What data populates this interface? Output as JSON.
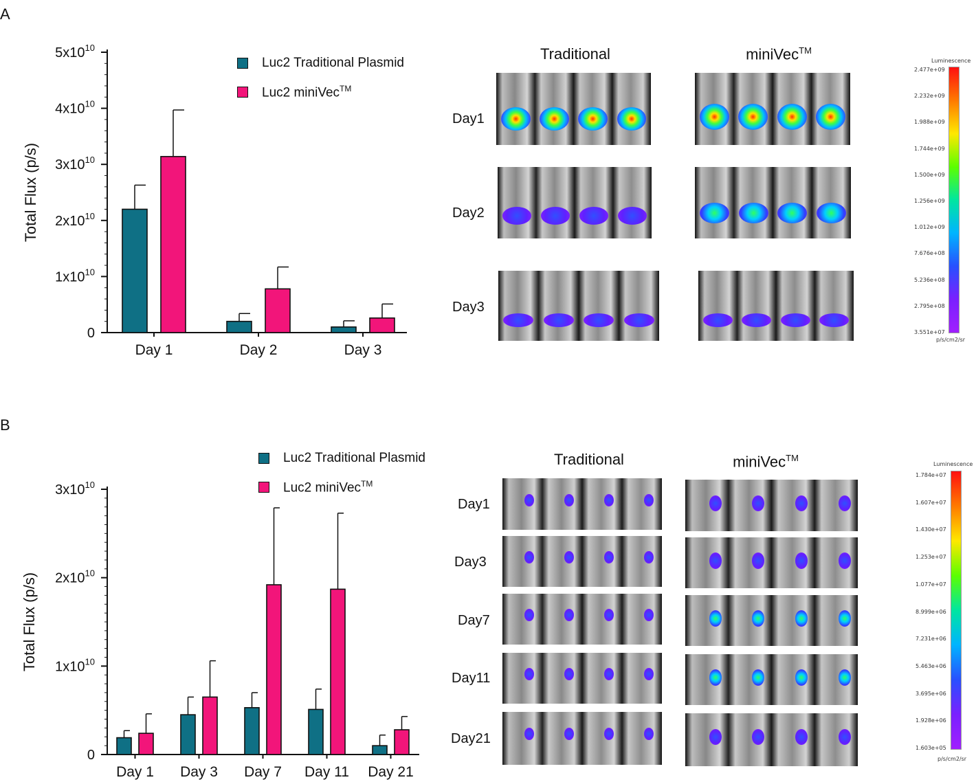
{
  "panels": {
    "a": "A",
    "b": "B"
  },
  "legend": {
    "traditional": "Luc2 Traditional Plasmid",
    "minivec": "Luc2 miniVec",
    "tm": "TM"
  },
  "colors": {
    "traditional": "#0f7085",
    "minivec": "#f2157a"
  },
  "chart_data": [
    {
      "type": "bar",
      "panel": "A",
      "categories": [
        "Day 1",
        "Day 2",
        "Day 3"
      ],
      "series": [
        {
          "name": "Luc2 Traditional Plasmid",
          "values": [
            22000000000.0,
            2000000000.0,
            1000000000.0
          ],
          "errors": [
            4300000000.0,
            1400000000.0,
            1100000000.0
          ]
        },
        {
          "name": "Luc2 miniVecTM",
          "values": [
            31400000000.0,
            7800000000.0,
            2600000000.0
          ],
          "errors": [
            8300000000.0,
            3900000000.0,
            2500000000.0
          ]
        }
      ],
      "ylabel": "Total Flux (p/s)",
      "ylim": [
        0,
        50000000000.0
      ],
      "yticks": [
        {
          "base": "0",
          "exp": "",
          "value": 0
        },
        {
          "base": "1x10",
          "exp": "10",
          "value": 10000000000.0
        },
        {
          "base": "2x10",
          "exp": "10",
          "value": 20000000000.0
        },
        {
          "base": "3x10",
          "exp": "10",
          "value": 30000000000.0
        },
        {
          "base": "4x10",
          "exp": "10",
          "value": 40000000000.0
        },
        {
          "base": "5x10",
          "exp": "10",
          "value": 50000000000.0
        }
      ]
    },
    {
      "type": "bar",
      "panel": "B",
      "categories": [
        "Day 1",
        "Day 3",
        "Day 7",
        "Day 11",
        "Day 21"
      ],
      "series": [
        {
          "name": "Luc2 Traditional Plasmid",
          "values": [
            1900000000.0,
            4500000000.0,
            5300000000.0,
            5100000000.0,
            1000000000.0
          ],
          "errors": [
            800000000.0,
            2000000000.0,
            1700000000.0,
            2300000000.0,
            1200000000.0
          ]
        },
        {
          "name": "Luc2 miniVecTM",
          "values": [
            2400000000.0,
            6500000000.0,
            19200000000.0,
            18700000000.0,
            2800000000.0
          ],
          "errors": [
            2200000000.0,
            4100000000.0,
            8700000000.0,
            8600000000.0,
            1500000000.0
          ]
        }
      ],
      "ylabel": "Total Flux (p/s)",
      "ylim": [
        0,
        30000000000.0
      ],
      "yticks": [
        {
          "base": "0",
          "exp": "",
          "value": 0
        },
        {
          "base": "1x10",
          "exp": "10",
          "value": 10000000000.0
        },
        {
          "base": "2x10",
          "exp": "10",
          "value": 20000000000.0
        },
        {
          "base": "3x10",
          "exp": "10",
          "value": 30000000000.0
        }
      ]
    }
  ],
  "imaging": {
    "col_traditional": "Traditional",
    "col_minivec": "miniVec",
    "col_tm": "TM",
    "a_rows": [
      "Day1",
      "Day2",
      "Day3"
    ],
    "b_rows": [
      "Day1",
      "Day3",
      "Day7",
      "Day11",
      "Day21"
    ]
  },
  "colorbar_a": {
    "title": "Luminescence",
    "units": "p/s/cm2/sr",
    "ticks": [
      "2.477e+09",
      "2.232e+09",
      "1.988e+09",
      "1.744e+09",
      "1.500e+09",
      "1.256e+09",
      "1.012e+09",
      "7.676e+08",
      "5.236e+08",
      "2.795e+08",
      "3.551e+07"
    ]
  },
  "colorbar_b": {
    "title": "Luminescence",
    "units": "p/s/cm2/sr",
    "ticks": [
      "1.784e+07",
      "1.607e+07",
      "1.430e+07",
      "1.253e+07",
      "1.077e+07",
      "8.999e+06",
      "7.231e+06",
      "5.463e+06",
      "3.695e+06",
      "1.928e+06",
      "1.603e+05"
    ]
  }
}
